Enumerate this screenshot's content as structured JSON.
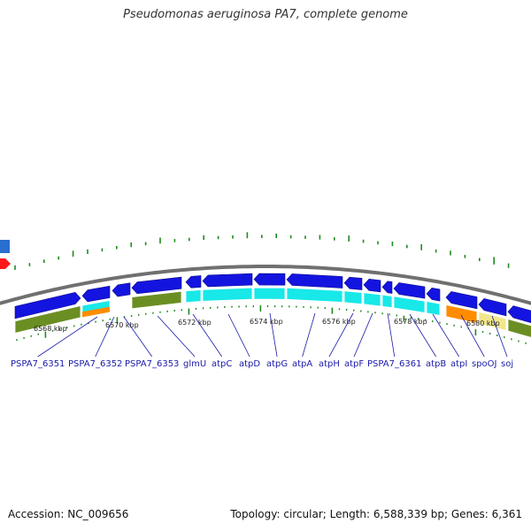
{
  "title": "Pseudomonas aeruginosa PA7, complete genome",
  "footer": {
    "accession": "Accession: NC_009656",
    "summary": "Topology: circular; Length: 6,588,339 bp; Genes: 6,361"
  },
  "colors": {
    "forward_gene": "#1414e0",
    "other_strand": "#2a6fd0",
    "rna": "#ff1a1a",
    "cog_green": "#6b8e23",
    "cog_cyan": "#18e8e8",
    "cog_orange": "#ff8c00",
    "cog_khaki": "#f0e68c",
    "tick_green": "#1e8c1e",
    "backbone": "#707070",
    "label_blue": "#1a1aa8"
  },
  "scale_labels": [
    "6568 kbp",
    "6570 kbp",
    "6572 kbp",
    "6574 kbp",
    "6576 kbp",
    "6578 kbp",
    "6580 kbp"
  ],
  "genes": [
    "PSPA7_6351",
    "PSPA7_6352",
    "PSPA7_6353",
    "glmU",
    "atpC",
    "atpD",
    "atpG",
    "atpA",
    "atpH",
    "atpF",
    "PSPA7_6361",
    "atpB",
    "atpI",
    "spoOJ",
    "soj"
  ]
}
